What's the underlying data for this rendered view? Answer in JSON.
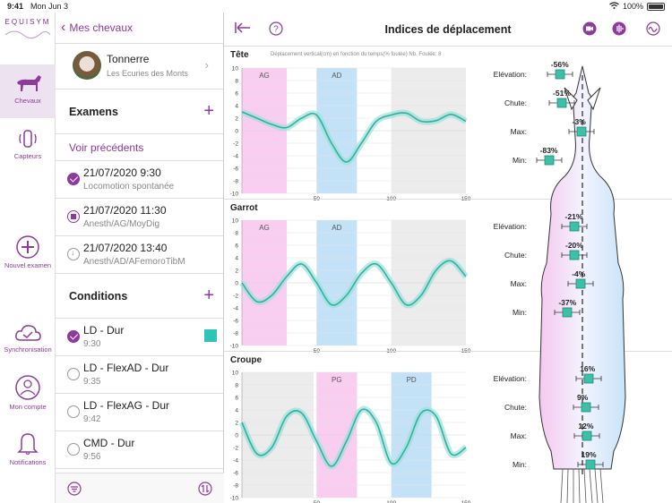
{
  "status": {
    "time": "9:41",
    "date": "Mon Jun 3",
    "battery": "100%"
  },
  "app": {
    "logo": "EQUISYM"
  },
  "rail": {
    "items": [
      {
        "label": "Chevaux",
        "icon": "horse-icon",
        "active": true
      },
      {
        "label": "Capteurs",
        "icon": "sensor-icon"
      },
      {
        "label": "Nouvel examen",
        "icon": "plus-circle-icon"
      },
      {
        "label": "Synchronisation",
        "icon": "cloud-sync-icon"
      },
      {
        "label": "Mon compte",
        "icon": "user-icon"
      },
      {
        "label": "Notifications",
        "icon": "bell-icon"
      }
    ]
  },
  "sidebar": {
    "back_label": "Mes chevaux",
    "horse": {
      "name": "Tonnerre",
      "stable": "Les Ecuries des Monts"
    },
    "exams_title": "Examens",
    "see_previous": "Voir précédents",
    "exams": [
      {
        "date": "21/07/2020 9:30",
        "desc": "Locomotion spontanée",
        "state": "checked"
      },
      {
        "date": "21/07/2020 11:30",
        "desc": "Anesth/AG/MoyDig",
        "state": "stop"
      },
      {
        "date": "21/07/2020 13:40",
        "desc": "Anesth/AD/AFemoroTibM",
        "state": "down"
      }
    ],
    "conditions_title": "Conditions",
    "conditions": [
      {
        "name": "LD - Dur",
        "time": "9:30",
        "checked": true,
        "color": "#2ec4b6"
      },
      {
        "name": "LD - FlexAD - Dur",
        "time": "9:35",
        "checked": false
      },
      {
        "name": "LD - FlexAG - Dur",
        "time": "9:42",
        "checked": false
      },
      {
        "name": "CMD - Dur",
        "time": "9:56",
        "checked": false
      }
    ]
  },
  "main": {
    "title": "Indices de déplacement",
    "chart_subtitle": "Déplacement vertical(cm) en fonction du temps(% foulée) Nb. Foulée: 8",
    "metric_labels": {
      "elev": "Elévation:",
      "chute": "Chute:",
      "max": "Max:",
      "min": "Min:"
    },
    "panels": [
      {
        "title": "Tête",
        "bands": [
          {
            "label": "AG",
            "from": 0,
            "to": 30,
            "color": "pink"
          },
          {
            "label": "AD",
            "from": 50,
            "to": 77,
            "color": "blue"
          },
          {
            "label": "",
            "from": 100,
            "to": 150,
            "color": "gray"
          }
        ],
        "metrics": {
          "elev": "-56%",
          "chute": "-51%",
          "max": "-3%",
          "min": "-83%"
        }
      },
      {
        "title": "Garrot",
        "bands": [
          {
            "label": "AG",
            "from": 0,
            "to": 30,
            "color": "pink"
          },
          {
            "label": "AD",
            "from": 50,
            "to": 77,
            "color": "blue"
          },
          {
            "label": "",
            "from": 100,
            "to": 150,
            "color": "gray"
          }
        ],
        "metrics": {
          "elev": "-21%",
          "chute": "-20%",
          "max": "-4%",
          "min": "-37%"
        }
      },
      {
        "title": "Croupe",
        "bands": [
          {
            "label": "",
            "from": 0,
            "to": 48,
            "color": "gray"
          },
          {
            "label": "PG",
            "from": 50,
            "to": 77,
            "color": "pink"
          },
          {
            "label": "PD",
            "from": 100,
            "to": 127,
            "color": "blue"
          }
        ],
        "metrics": {
          "elev": "16%",
          "chute": "9%",
          "max": "12%",
          "min": "19%"
        }
      }
    ]
  },
  "chart_data": [
    {
      "type": "line",
      "title": "Tête",
      "ylim": [
        -10,
        10
      ],
      "xlim": [
        0,
        150
      ],
      "xticks": [
        50,
        100,
        150
      ],
      "yticks": [
        10,
        8,
        6,
        4,
        2,
        0,
        -2,
        -4,
        -6,
        -8,
        -10
      ],
      "series": [
        {
          "x": [
            0,
            10,
            20,
            30,
            40,
            50,
            60,
            70,
            80,
            90,
            100,
            110,
            120,
            130,
            140,
            150
          ],
          "y": [
            3,
            2,
            1,
            0.5,
            2,
            2.5,
            -2,
            -5,
            -2,
            1.5,
            2.5,
            2.8,
            1.5,
            1.6,
            2.6,
            1.5
          ]
        }
      ]
    },
    {
      "type": "line",
      "title": "Garrot",
      "ylim": [
        -10,
        10
      ],
      "xlim": [
        0,
        150
      ],
      "xticks": [
        50,
        100,
        150
      ],
      "yticks": [
        10,
        8,
        6,
        4,
        2,
        0,
        -2,
        -4,
        -6,
        -8,
        -10
      ],
      "series": [
        {
          "x": [
            0,
            10,
            20,
            30,
            40,
            50,
            60,
            70,
            80,
            90,
            100,
            110,
            120,
            130,
            140,
            150
          ],
          "y": [
            0,
            -3,
            -2,
            1,
            3,
            0,
            -3.5,
            -2,
            1.5,
            3,
            0,
            -3.5,
            -2,
            2,
            3.5,
            1
          ]
        }
      ]
    },
    {
      "type": "line",
      "title": "Croupe",
      "ylim": [
        -10,
        10
      ],
      "xlim": [
        0,
        150
      ],
      "xticks": [
        50,
        100,
        150
      ],
      "yticks": [
        10,
        8,
        6,
        4,
        2,
        0,
        -2,
        -4,
        -6,
        -8,
        -10
      ],
      "series": [
        {
          "x": [
            0,
            10,
            20,
            30,
            40,
            50,
            60,
            70,
            80,
            90,
            100,
            110,
            120,
            130,
            140,
            150
          ],
          "y": [
            2,
            -3,
            -2,
            3,
            3.5,
            -1,
            -5,
            -1,
            4,
            2,
            -4.5,
            -2,
            3.5,
            3,
            -3,
            -2
          ]
        }
      ]
    }
  ]
}
